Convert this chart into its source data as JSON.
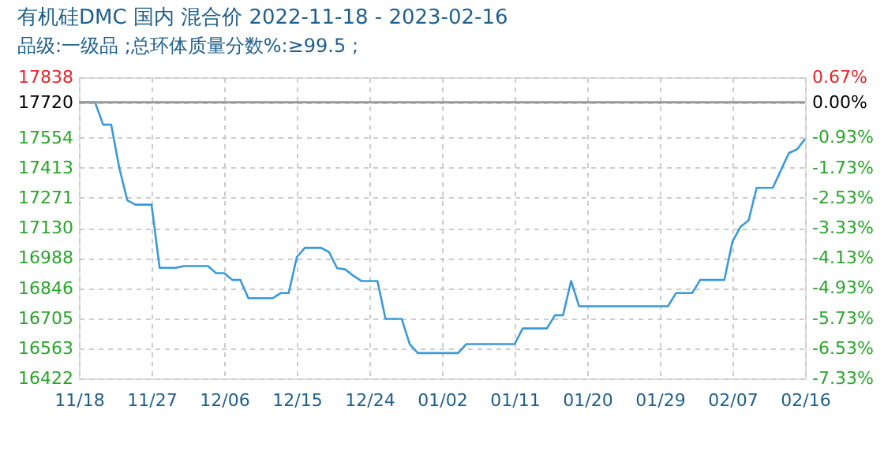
{
  "chart_data": {
    "type": "line",
    "title": "有机硅DMC 国内 混合价 2022-11-18 - 2023-02-16",
    "subtitle": "品级:一级品 ;总环体质量分数%:≥99.5 ;",
    "x": [
      "2022-11-18",
      "2022-11-20",
      "2022-11-21",
      "2022-11-22",
      "2022-11-23",
      "2022-11-24",
      "2022-11-25",
      "2022-11-27",
      "2022-11-28",
      "2022-11-30",
      "2022-12-01",
      "2022-12-04",
      "2022-12-05",
      "2022-12-06",
      "2022-12-07",
      "2022-12-08",
      "2022-12-09",
      "2022-12-12",
      "2022-12-13",
      "2022-12-14",
      "2022-12-15",
      "2022-12-16",
      "2022-12-18",
      "2022-12-19",
      "2022-12-20",
      "2022-12-21",
      "2022-12-22",
      "2022-12-23",
      "2022-12-25",
      "2022-12-26",
      "2022-12-28",
      "2022-12-29",
      "2022-12-30",
      "2023-01-04",
      "2023-01-05",
      "2023-01-11",
      "2023-01-12",
      "2023-01-15",
      "2023-01-16",
      "2023-01-17",
      "2023-01-18",
      "2023-01-19",
      "2023-01-30",
      "2023-01-31",
      "2023-02-02",
      "2023-02-03",
      "2023-02-06",
      "2023-02-07",
      "2023-02-08",
      "2023-02-09",
      "2023-02-10",
      "2023-02-12",
      "2023-02-13",
      "2023-02-14",
      "2023-02-15",
      "2023-02-16"
    ],
    "series": [
      {
        "color": "#3a9ad9",
        "values": [
          17720,
          17720,
          17615,
          17615,
          17412,
          17259,
          17239,
          17239,
          16942,
          16942,
          16950,
          16950,
          16917,
          16917,
          16885,
          16885,
          16799,
          16799,
          16823,
          16823,
          16992,
          17036,
          17036,
          17016,
          16940,
          16935,
          16905,
          16880,
          16880,
          16702,
          16702,
          16583,
          16541,
          16541,
          16583,
          16583,
          16657,
          16657,
          16719,
          16719,
          16880,
          16761,
          16761,
          16823,
          16823,
          16885,
          16885,
          17066,
          17135,
          17165,
          17318,
          17318,
          17400,
          17482,
          17499,
          17548
        ]
      }
    ],
    "xlim": [
      "2022-11-18",
      "2023-02-16"
    ],
    "xticks": [
      {
        "value": "2022-11-18",
        "label": "11/18"
      },
      {
        "value": "2022-11-27",
        "label": "11/27"
      },
      {
        "value": "2022-12-06",
        "label": "12/06"
      },
      {
        "value": "2022-12-15",
        "label": "12/15"
      },
      {
        "value": "2022-12-24",
        "label": "12/24"
      },
      {
        "value": "2023-01-02",
        "label": "01/02"
      },
      {
        "value": "2023-01-11",
        "label": "01/11"
      },
      {
        "value": "2023-01-20",
        "label": "01/20"
      },
      {
        "value": "2023-01-29",
        "label": "01/29"
      },
      {
        "value": "2023-02-07",
        "label": "02/07"
      },
      {
        "value": "2023-02-16",
        "label": "02/16"
      }
    ],
    "ylim": [
      16422,
      17838
    ],
    "yticks": [
      16422,
      16563,
      16705,
      16846,
      16988,
      17130,
      17271,
      17413,
      17554,
      17720,
      17838
    ],
    "y2lim": [
      -7.33,
      0.67
    ],
    "y2ticks": [
      {
        "value": -7.33,
        "label": "-7.33%"
      },
      {
        "value": -6.53,
        "label": "-6.53%"
      },
      {
        "value": -5.73,
        "label": "-5.73%"
      },
      {
        "value": -4.93,
        "label": "-4.93%"
      },
      {
        "value": -4.13,
        "label": "-4.13%"
      },
      {
        "value": -3.33,
        "label": "-3.33%"
      },
      {
        "value": -2.53,
        "label": "-2.53%"
      },
      {
        "value": -1.73,
        "label": "-1.73%"
      },
      {
        "value": -0.93,
        "label": "-0.93%"
      },
      {
        "value": 0.0,
        "label": "0.00%"
      },
      {
        "value": 0.67,
        "label": "0.67%"
      }
    ],
    "ref_lines": [
      {
        "axis": "y",
        "value": 17720,
        "color": "#999999"
      }
    ],
    "grid": true
  }
}
